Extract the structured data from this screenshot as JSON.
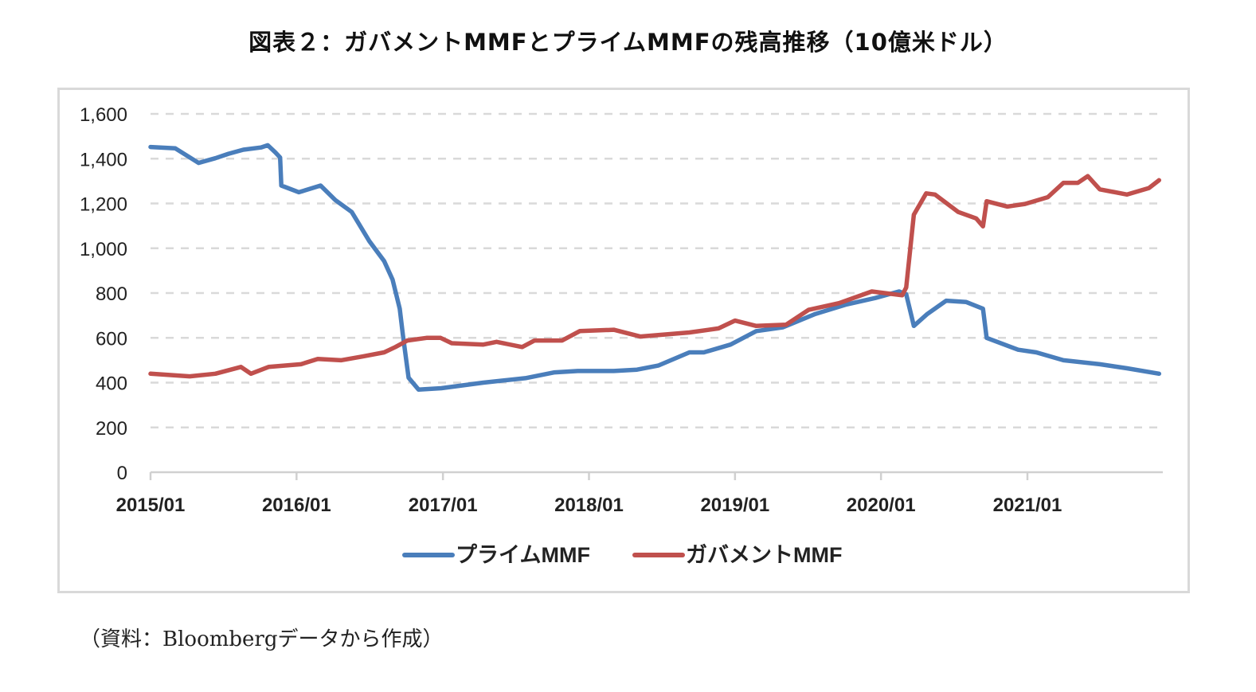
{
  "title": "図表２：ガバメントMMFとプライムMMFの残高推移（10億米ドル）",
  "source": "（資料：Bloombergデータから作成）",
  "chart_data": {
    "type": "line",
    "title": "図表２：ガバメントMMFとプライムMMFの残高推移（10億米ドル）",
    "xlabel": "",
    "ylabel": "",
    "ylim": [
      0,
      1600
    ],
    "xlim": [
      "2015-01-01",
      "2021-12-01"
    ],
    "yticks": [
      "0",
      "200",
      "400",
      "600",
      "800",
      "1,000",
      "1,200",
      "1,400",
      "1,600"
    ],
    "ytick_values": [
      0,
      200,
      400,
      600,
      800,
      1000,
      1200,
      1400,
      1600
    ],
    "xticks": [
      "2015/01",
      "2016/01",
      "2017/01",
      "2018/01",
      "2019/01",
      "2020/01",
      "2021/01"
    ],
    "xtick_dates": [
      "2015-01-01",
      "2016-01-01",
      "2017-01-01",
      "2018-01-01",
      "2019-01-01",
      "2020-01-01",
      "2021-01-01"
    ],
    "grid": "horizontal dashed",
    "legend": "bottom",
    "series": [
      {
        "name": "プライムMMF",
        "color": "#4a7ebb",
        "points": [
          [
            "2015-01-01",
            1452
          ],
          [
            "2015-03-04",
            1446
          ],
          [
            "2015-05-01",
            1381
          ],
          [
            "2015-06-12",
            1402
          ],
          [
            "2015-07-15",
            1422
          ],
          [
            "2015-08-21",
            1440
          ],
          [
            "2015-10-04",
            1450
          ],
          [
            "2015-10-21",
            1460
          ],
          [
            "2015-11-09",
            1428
          ],
          [
            "2015-11-21",
            1405
          ],
          [
            "2015-11-24",
            1280
          ],
          [
            "2016-01-07",
            1250
          ],
          [
            "2016-03-01",
            1280
          ],
          [
            "2016-04-07",
            1215
          ],
          [
            "2016-05-18",
            1162
          ],
          [
            "2016-07-01",
            1032
          ],
          [
            "2016-08-07",
            943
          ],
          [
            "2016-08-28",
            860
          ],
          [
            "2016-09-15",
            730
          ],
          [
            "2016-09-23",
            612
          ],
          [
            "2016-10-07",
            422
          ],
          [
            "2016-11-01",
            369
          ],
          [
            "2016-12-28",
            375
          ],
          [
            "2017-04-12",
            400
          ],
          [
            "2017-07-26",
            420
          ],
          [
            "2017-10-07",
            446
          ],
          [
            "2017-12-04",
            452
          ],
          [
            "2018-03-04",
            452
          ],
          [
            "2018-05-01",
            458
          ],
          [
            "2018-06-23",
            476
          ],
          [
            "2018-09-09",
            535
          ],
          [
            "2018-10-15",
            535
          ],
          [
            "2018-12-21",
            570
          ],
          [
            "2019-02-23",
            630
          ],
          [
            "2019-05-01",
            647
          ],
          [
            "2019-07-21",
            707
          ],
          [
            "2019-10-07",
            749
          ],
          [
            "2019-12-18",
            778
          ],
          [
            "2020-02-15",
            807
          ],
          [
            "2020-03-04",
            795
          ],
          [
            "2020-03-23",
            653
          ],
          [
            "2020-04-26",
            707
          ],
          [
            "2020-06-12",
            766
          ],
          [
            "2020-08-01",
            760
          ],
          [
            "2020-09-12",
            730
          ],
          [
            "2020-09-21",
            600
          ],
          [
            "2020-12-09",
            547
          ],
          [
            "2021-01-23",
            535
          ],
          [
            "2021-04-01",
            500
          ],
          [
            "2021-07-01",
            482
          ],
          [
            "2021-09-07",
            464
          ],
          [
            "2021-11-26",
            440
          ]
        ]
      },
      {
        "name": "ガバメントMMF",
        "color": "#c0504d",
        "points": [
          [
            "2015-01-01",
            440
          ],
          [
            "2015-04-09",
            428
          ],
          [
            "2015-06-12",
            440
          ],
          [
            "2015-08-15",
            470
          ],
          [
            "2015-09-09",
            440
          ],
          [
            "2015-10-23",
            470
          ],
          [
            "2016-01-12",
            482
          ],
          [
            "2016-02-23",
            506
          ],
          [
            "2016-04-21",
            500
          ],
          [
            "2016-06-15",
            517
          ],
          [
            "2016-08-07",
            535
          ],
          [
            "2016-09-04",
            559
          ],
          [
            "2016-10-04",
            588
          ],
          [
            "2016-11-21",
            600
          ],
          [
            "2016-12-26",
            600
          ],
          [
            "2017-01-23",
            576
          ],
          [
            "2017-04-12",
            570
          ],
          [
            "2017-05-15",
            582
          ],
          [
            "2017-07-18",
            559
          ],
          [
            "2017-08-18",
            588
          ],
          [
            "2017-10-26",
            588
          ],
          [
            "2017-12-09",
            630
          ],
          [
            "2018-03-04",
            636
          ],
          [
            "2018-05-09",
            606
          ],
          [
            "2018-09-09",
            624
          ],
          [
            "2018-11-21",
            642
          ],
          [
            "2019-01-01",
            677
          ],
          [
            "2019-02-23",
            653
          ],
          [
            "2019-05-09",
            659
          ],
          [
            "2019-07-04",
            725
          ],
          [
            "2019-09-18",
            755
          ],
          [
            "2019-12-09",
            807
          ],
          [
            "2020-02-23",
            790
          ],
          [
            "2020-03-04",
            825
          ],
          [
            "2020-03-23",
            1150
          ],
          [
            "2020-04-23",
            1245
          ],
          [
            "2020-05-15",
            1240
          ],
          [
            "2020-07-12",
            1162
          ],
          [
            "2020-08-26",
            1133
          ],
          [
            "2020-09-12",
            1098
          ],
          [
            "2020-09-21",
            1210
          ],
          [
            "2020-11-12",
            1186
          ],
          [
            "2020-12-26",
            1198
          ],
          [
            "2021-02-21",
            1228
          ],
          [
            "2021-04-01",
            1292
          ],
          [
            "2021-05-07",
            1292
          ],
          [
            "2021-06-01",
            1322
          ],
          [
            "2021-07-01",
            1263
          ],
          [
            "2021-09-07",
            1240
          ],
          [
            "2021-11-01",
            1269
          ],
          [
            "2021-11-26",
            1304
          ]
        ]
      }
    ]
  }
}
